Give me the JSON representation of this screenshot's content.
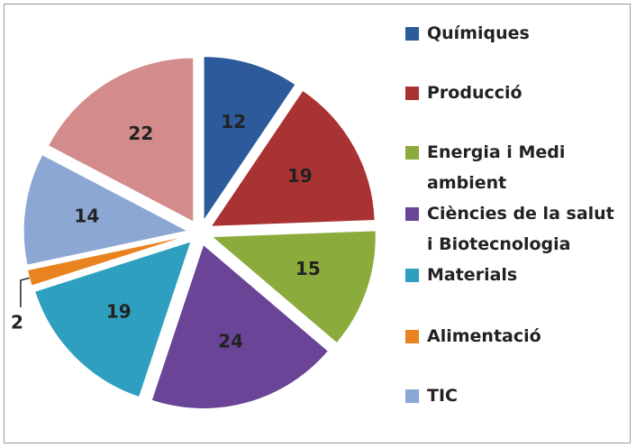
{
  "chart_data": {
    "type": "pie",
    "categories": [
      "Químiques",
      "Producció",
      "Energia i Medi ambient",
      "Ciències de la salut i Biotecnologia",
      "Materials",
      "Alimentació",
      "TIC",
      null
    ],
    "values": [
      12,
      19,
      15,
      24,
      19,
      2,
      14,
      22
    ],
    "colors": [
      "#2d5a9b",
      "#a93333",
      "#8bab3c",
      "#6a4497",
      "#2f9fbf",
      "#e8831f",
      "#8ca7d3",
      "#d38b8b"
    ],
    "legend": "right"
  }
}
